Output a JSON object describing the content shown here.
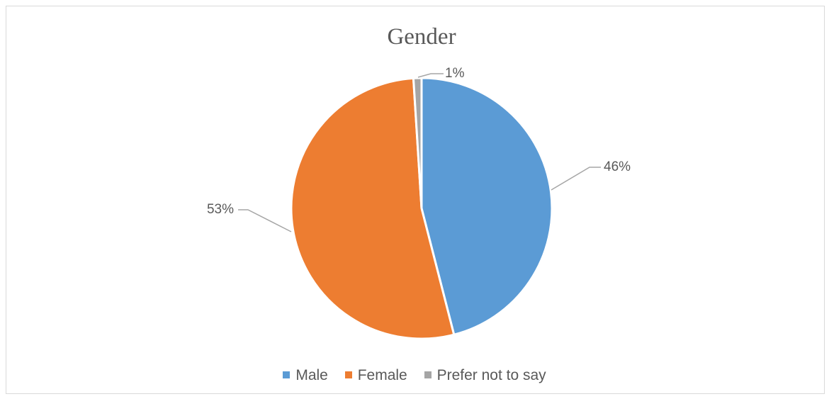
{
  "chart_data": {
    "type": "pie",
    "title": "Gender",
    "categories": [
      "Male",
      "Female",
      "Prefer not to say"
    ],
    "values": [
      46,
      53,
      1
    ],
    "data_labels": [
      "46%",
      "53%",
      "1%"
    ],
    "colors": [
      "#5b9bd5",
      "#ed7d31",
      "#a5a5a5"
    ],
    "legend_position": "bottom"
  }
}
